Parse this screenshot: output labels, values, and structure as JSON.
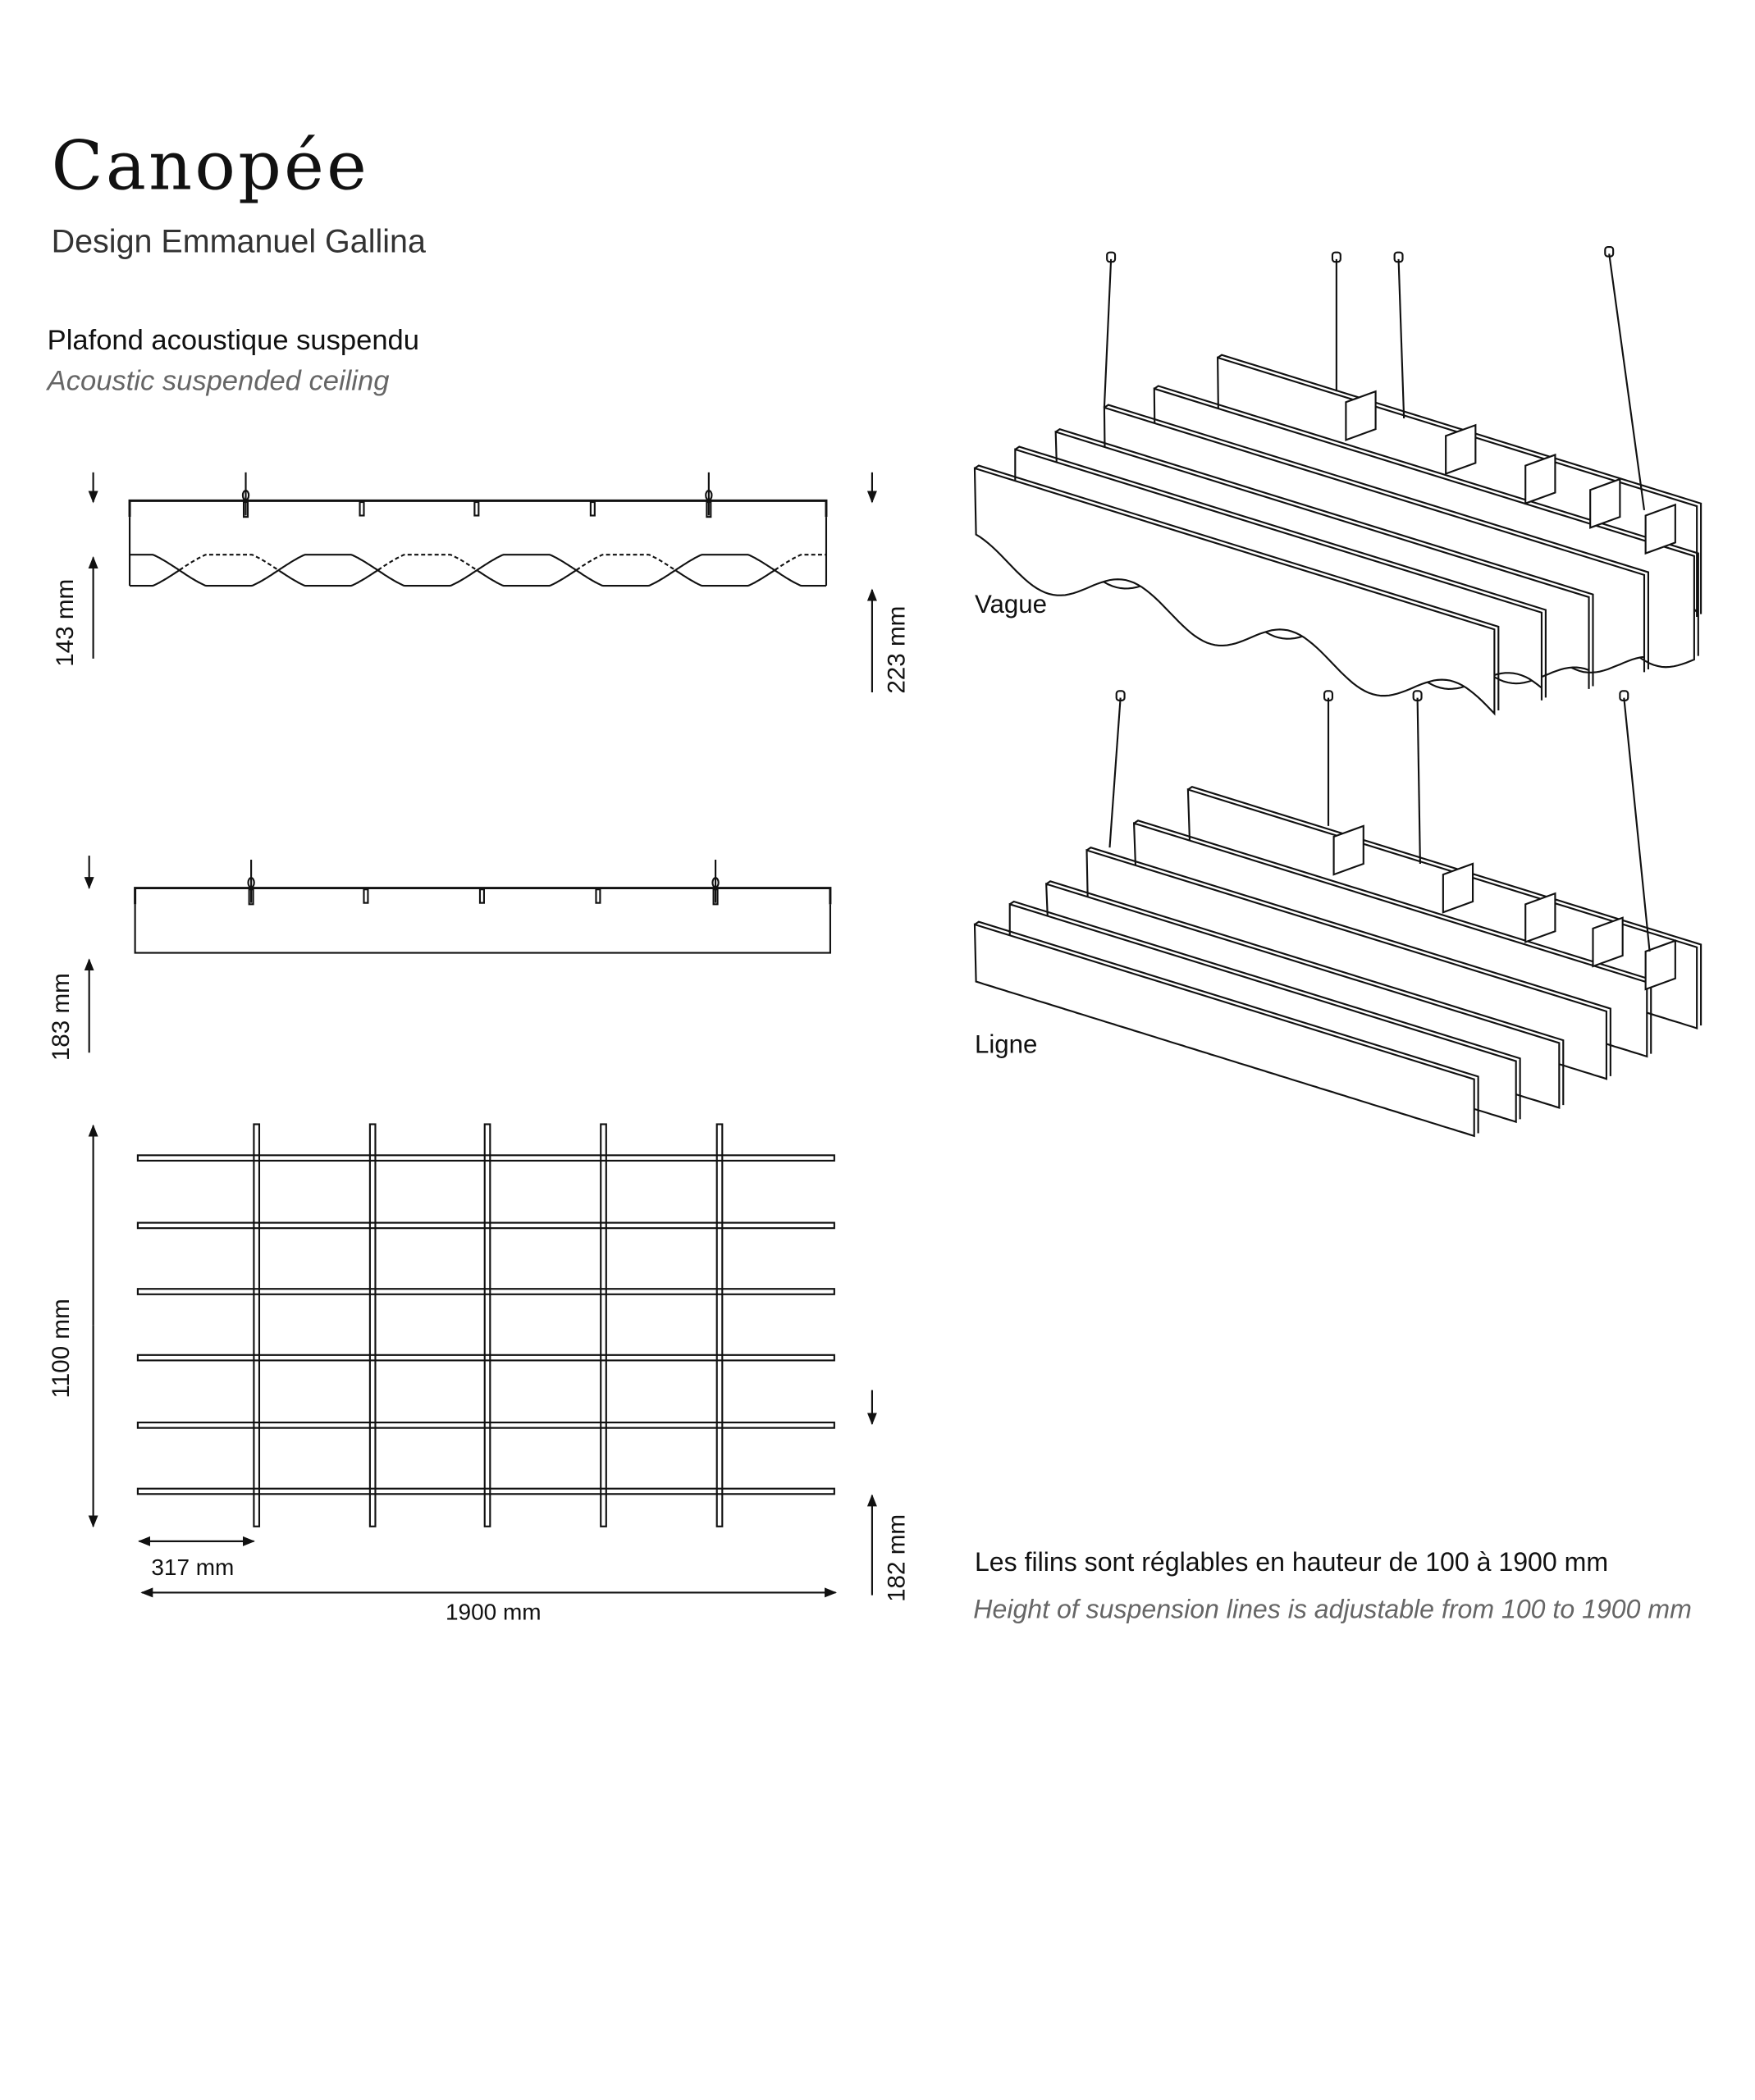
{
  "header": {
    "title": "Canopée",
    "designer": "Design Emmanuel Gallina",
    "subtitle_fr": "Plafond acoustique suspendu",
    "subtitle_en": "Acoustic suspended ceiling"
  },
  "dimensions": {
    "vague_panel_height": "143 mm",
    "vague_total_height": "223 mm",
    "ligne_total_height": "183 mm",
    "grid_depth": "1100 mm",
    "panel_spacing": "317 mm",
    "grid_width": "1900 mm",
    "grid_height": "182 mm"
  },
  "variants": {
    "wave_label": "Vague",
    "line_label": "Ligne"
  },
  "note": {
    "fr": "Les filins sont réglables en hauteur de 100 à 1900 mm",
    "en": "Height of suspension lines is adjustable from 100  to 1900 mm"
  },
  "colors": {
    "ink": "#111111",
    "secondary_text": "#666666",
    "background": "#ffffff"
  }
}
